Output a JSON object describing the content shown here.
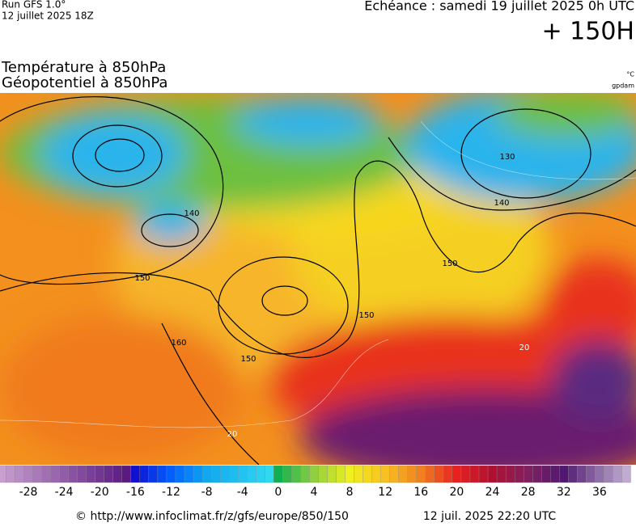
{
  "header": {
    "run": "Run GFS 1.0°",
    "run_date": "12 juillet 2025 18Z",
    "echeance": "Echéance : samedi 19 juillet 2025 0h UTC",
    "lead": "+ 150H",
    "title_line1": "Température à 850hPa",
    "title_line2": "Géopotentiel à 850hPa",
    "unit_temp": "°C",
    "unit_geo": "gpdam"
  },
  "map": {
    "contour_labels": [
      "150",
      "140",
      "150",
      "160",
      "20",
      "150",
      "130",
      "140",
      "150",
      "20"
    ]
  },
  "scale": {
    "ticks": [
      -28,
      -24,
      -20,
      -16,
      -12,
      -8,
      -4,
      0,
      4,
      8,
      12,
      16,
      20,
      24,
      28,
      32,
      36
    ]
  },
  "footer": {
    "url": "© http://www.infoclimat.fr/z/gfs/europe/850/150",
    "timestamp": "12 juil. 2025 22:20 UTC"
  }
}
